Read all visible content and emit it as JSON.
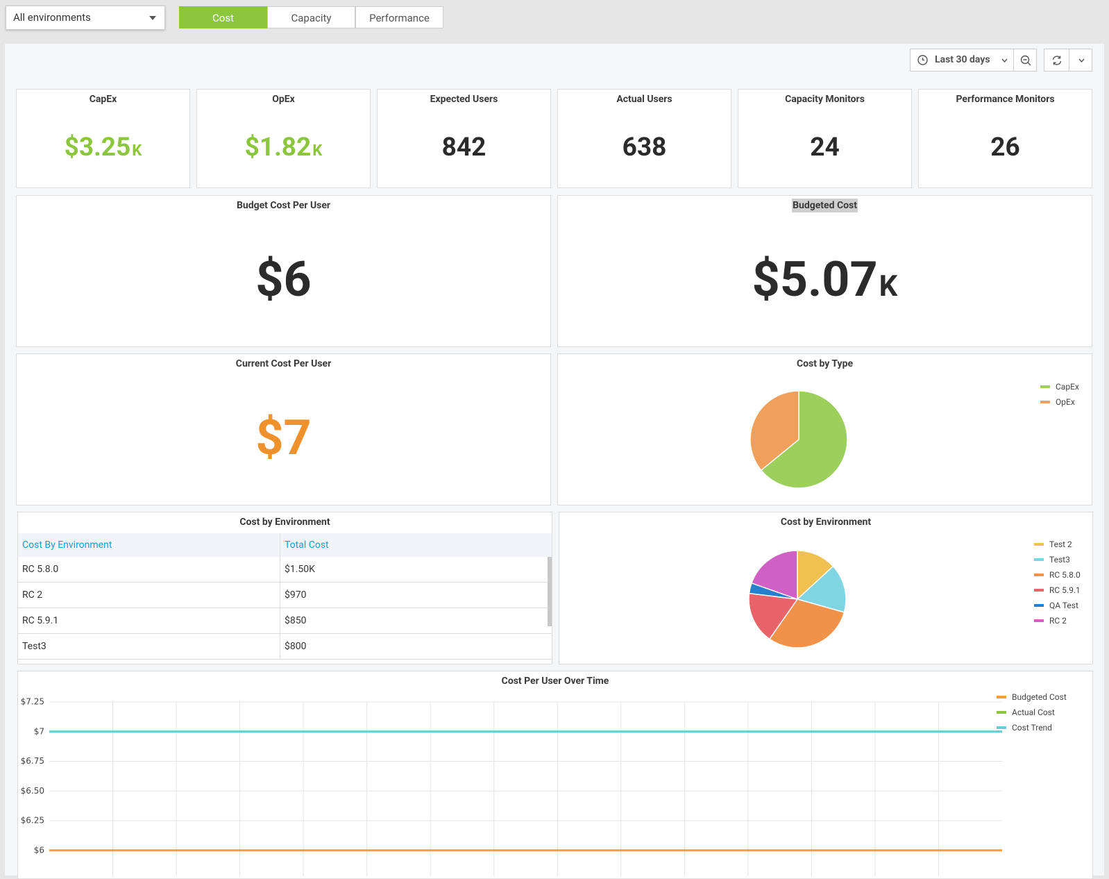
{
  "toolbar": {
    "environment": "All environments",
    "tabs": [
      "Cost",
      "Capacity",
      "Performance"
    ],
    "time_range": "Last 30 days"
  },
  "stats": [
    {
      "title": "CapEx",
      "value": "$3.25",
      "unit": "K",
      "color": "#8cc63f"
    },
    {
      "title": "OpEx",
      "value": "$1.82",
      "unit": "K",
      "color": "#8cc63f"
    },
    {
      "title": "Expected Users",
      "value": 842
    },
    {
      "title": "Actual Users",
      "value": 638
    },
    {
      "title": "Capacity Monitors",
      "value": 24
    },
    {
      "title": "Performance Monitors",
      "value": 26
    }
  ],
  "budget_cost_per_user": {
    "title": "Budget Cost Per User",
    "value": "$6"
  },
  "budgeted_cost": {
    "title": "Budgeted Cost",
    "value": "$5.07",
    "unit": "K"
  },
  "current_cost_per_user": {
    "title": "Current Cost Per User",
    "value": "$7",
    "color": "#f0922b"
  },
  "cost_table": {
    "title": "Cost by Environment",
    "columns": [
      "Cost By Environment",
      "Total Cost"
    ],
    "rows": [
      [
        "RC 5.8.0",
        "$1.50K"
      ],
      [
        "RC 2",
        "$970"
      ],
      [
        "RC 5.9.1",
        "$850"
      ],
      [
        "Test3",
        "$800"
      ]
    ]
  },
  "chart_data": [
    {
      "type": "pie",
      "title": "Cost by Type",
      "categories": [
        "CapEx",
        "OpEx"
      ],
      "values": [
        3.25,
        1.82
      ],
      "colors": [
        "#9ccf5c",
        "#f0a05a"
      ]
    },
    {
      "type": "pie",
      "title": "Cost by Environment",
      "categories": [
        "Test 2",
        "Test3",
        "RC 5.8.0",
        "RC 5.9.1",
        "QA Test",
        "RC 2"
      ],
      "values": [
        650,
        800,
        1500,
        850,
        170,
        970
      ],
      "colors": [
        "#f0c050",
        "#7fd6e2",
        "#f0924a",
        "#e8646a",
        "#2680d0",
        "#d060c4"
      ]
    },
    {
      "type": "line",
      "title": "Cost Per User Over Time",
      "categories": [
        null,
        null,
        null,
        null,
        null,
        null,
        null,
        null,
        null,
        null,
        null,
        null,
        null,
        null,
        null,
        null
      ],
      "series": [
        {
          "name": "Budgeted Cost",
          "color": "#f0a035",
          "values": [
            6,
            6,
            6,
            6,
            6,
            6,
            6,
            6,
            6,
            6,
            6,
            6,
            6,
            6,
            6,
            6
          ]
        },
        {
          "name": "Actual Cost",
          "color": "#8cc63f",
          "values": [
            7,
            7,
            7,
            7,
            7,
            7,
            7,
            7,
            7,
            7,
            7,
            7,
            7,
            7,
            7,
            7
          ]
        },
        {
          "name": "Cost Trend",
          "color": "#6ccbd8",
          "values": [
            7,
            7,
            7,
            7,
            7,
            7,
            7,
            7,
            7,
            7,
            7,
            7,
            7,
            7,
            7,
            7
          ]
        }
      ],
      "ylim": [
        5.8,
        7.25
      ],
      "yticks": [
        {
          "value": 7.25,
          "label": "$7.25"
        },
        {
          "value": 7,
          "label": "$7"
        },
        {
          "value": 6.75,
          "label": "$6.75"
        },
        {
          "value": 6.5,
          "label": "$6.50"
        },
        {
          "value": 6.25,
          "label": "$6.25"
        },
        {
          "value": 6,
          "label": "$6"
        }
      ],
      "grid": true
    }
  ]
}
